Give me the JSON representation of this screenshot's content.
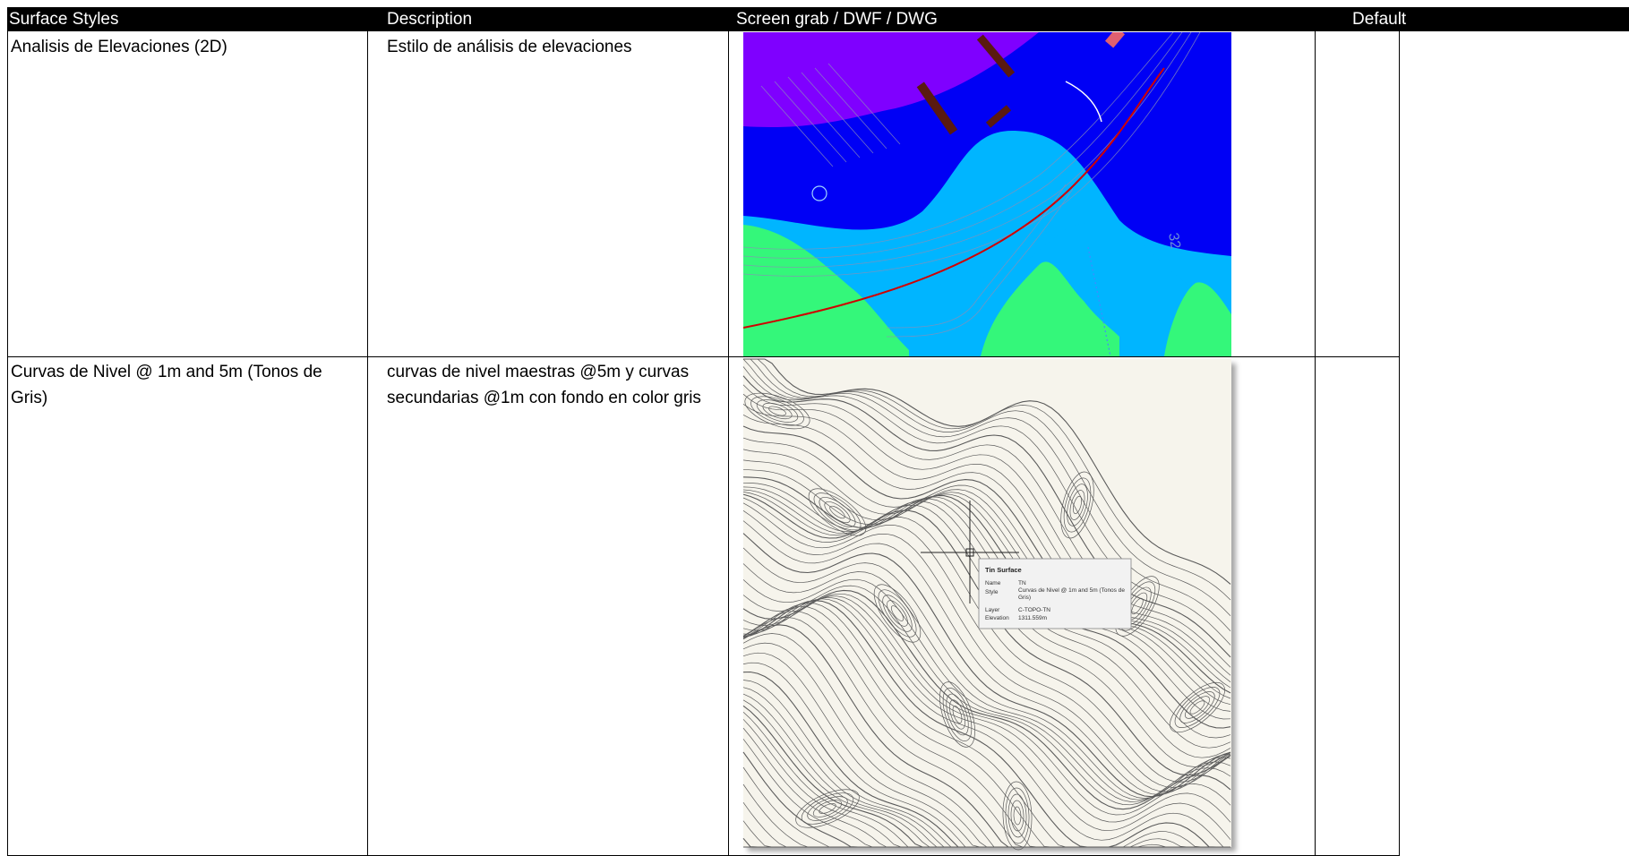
{
  "table": {
    "headers": {
      "style": "Surface Styles",
      "description": "Description",
      "screen": "Screen grab / DWF / DWG",
      "default": "Default"
    },
    "rows": [
      {
        "style": "Analisis de Elevaciones (2D)",
        "description": "Estilo de análisis de elevaciones",
        "image": "elevation-analysis-map",
        "default": ""
      },
      {
        "style": "Curvas de Nivel @ 1m and 5m (Tonos de Gris)",
        "description": "curvas de nivel maestras @5m y curvas secundarias @1m con fondo en color gris",
        "image": "contour-map-grayscale",
        "default": ""
      }
    ]
  },
  "tooltip": {
    "title": "Tin Surface",
    "rows": [
      {
        "label": "Name",
        "value": "TN"
      },
      {
        "label": "Style",
        "value": "Curvas de Nivel @ 1m and 5m (Tonos de Gris)"
      },
      {
        "label": "Layer",
        "value": "C-TOPO-TN"
      },
      {
        "label": "Elevation",
        "value": "1311.559m"
      }
    ]
  },
  "map_labels": {
    "station": "32"
  },
  "colors": {
    "violet": "#7F00FF",
    "blue": "#0000F5",
    "light_blue": "#00B5FF",
    "green": "#34F77A",
    "alignment_red": "#D00000",
    "contour_bg": "#F6F4EC"
  }
}
